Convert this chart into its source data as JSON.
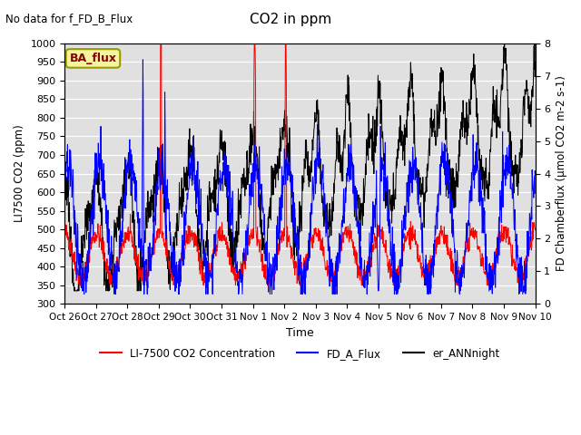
{
  "title": "CO2 in ppm",
  "top_left_text": "No data for f_FD_B_Flux",
  "annotation_text": "BA_flux",
  "xlabel": "Time",
  "ylabel_left": "LI7500 CO2 (ppm)",
  "ylabel_right": "FD Chamberflux (μmol CO2 m-2 s-1)",
  "ylim_left": [
    300,
    1000
  ],
  "ylim_right": [
    0.0,
    8.0
  ],
  "yticks_left": [
    300,
    350,
    400,
    450,
    500,
    550,
    600,
    650,
    700,
    750,
    800,
    850,
    900,
    950,
    1000
  ],
  "yticks_right": [
    0.0,
    1.0,
    2.0,
    3.0,
    4.0,
    5.0,
    6.0,
    7.0,
    8.0
  ],
  "xtick_labels": [
    "Oct 26",
    "Oct 27",
    "Oct 28",
    "Oct 29",
    "Oct 30",
    "Oct 31",
    "Nov 1",
    "Nov 2",
    "Nov 3",
    "Nov 4",
    "Nov 5",
    "Nov 6",
    "Nov 7",
    "Nov 8",
    "Nov 9",
    "Nov 10"
  ],
  "color_red": "#ff0000",
  "color_blue": "#0000ff",
  "color_black": "#000000",
  "legend_labels": [
    "LI-7500 CO2 Concentration",
    "FD_A_Flux",
    "er_ANNnight"
  ],
  "bg_color": "#e0e0e0",
  "n_points": 1500,
  "linewidth": 0.7
}
